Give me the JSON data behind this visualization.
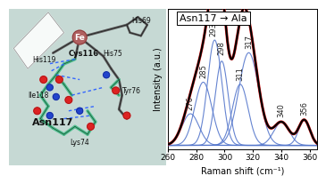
{
  "title": "Asn117 → Ala",
  "xlabel": "Raman shift (cm⁻¹)",
  "ylabel": "Intensity (a.u.)",
  "xlim": [
    260,
    365
  ],
  "peak_centers": [
    276,
    285,
    293,
    298,
    311,
    317,
    340,
    356
  ],
  "peak_heights": [
    0.3,
    0.6,
    1.0,
    0.8,
    0.58,
    0.88,
    0.22,
    0.24
  ],
  "peak_widths": [
    6.0,
    6.0,
    5.0,
    4.5,
    5.5,
    7.0,
    5.5,
    4.0
  ],
  "curve_color_blue": "#5577cc",
  "curve_color_red": "#cc1111",
  "curve_color_black": "#111111",
  "title_fontsize": 8,
  "axis_fontsize": 7,
  "tick_fontsize": 6.5,
  "label_fontsize": 6,
  "mol_bg": "#c8dcd8",
  "mol_bg2": "#e8f0ee"
}
